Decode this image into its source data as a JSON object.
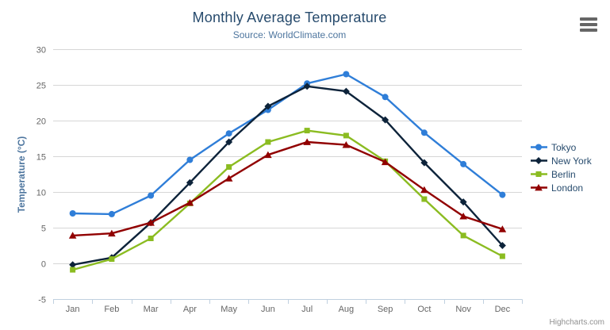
{
  "header": {
    "title": "Monthly Average Temperature",
    "subtitle": "Source: WorldClimate.com"
  },
  "export_menu": {
    "icon": "hamburger-icon"
  },
  "credits": "Highcharts.com",
  "colors": {
    "title": "#274b6d",
    "subtitle": "#4d759e",
    "axis_label": "#666666",
    "axis_title": "#4d759e",
    "gridline": "#d6d6d6",
    "axis_line": "#c0d0e0",
    "legend_text": "#274b6d",
    "credits": "#909090"
  },
  "chart_data": {
    "type": "line",
    "title": "Monthly Average Temperature",
    "subtitle": "Source: WorldClimate.com",
    "categories": [
      "Jan",
      "Feb",
      "Mar",
      "Apr",
      "May",
      "Jun",
      "Jul",
      "Aug",
      "Sep",
      "Oct",
      "Nov",
      "Dec"
    ],
    "xlabel": "",
    "ylabel": "Temperature (°C)",
    "ylim": [
      -5,
      30
    ],
    "ytick_step": 5,
    "yticks": [
      -5,
      0,
      5,
      10,
      15,
      20,
      25,
      30
    ],
    "grid": true,
    "legend_position": "right",
    "series": [
      {
        "name": "Tokyo",
        "color": "#2f7ed8",
        "marker": "circle",
        "values": [
          7.0,
          6.9,
          9.5,
          14.5,
          18.2,
          21.5,
          25.2,
          26.5,
          23.3,
          18.3,
          13.9,
          9.6
        ]
      },
      {
        "name": "New York",
        "color": "#0d233a",
        "marker": "diamond",
        "values": [
          -0.2,
          0.8,
          5.7,
          11.3,
          17.0,
          22.0,
          24.8,
          24.1,
          20.1,
          14.1,
          8.6,
          2.5
        ]
      },
      {
        "name": "Berlin",
        "color": "#8bbc21",
        "marker": "square",
        "values": [
          -0.9,
          0.6,
          3.5,
          8.4,
          13.5,
          17.0,
          18.6,
          17.9,
          14.3,
          9.0,
          3.9,
          1.0
        ]
      },
      {
        "name": "London",
        "color": "#910000",
        "marker": "triangle",
        "values": [
          3.9,
          4.2,
          5.7,
          8.5,
          11.9,
          15.2,
          17.0,
          16.6,
          14.2,
          10.3,
          6.6,
          4.8
        ]
      }
    ]
  }
}
